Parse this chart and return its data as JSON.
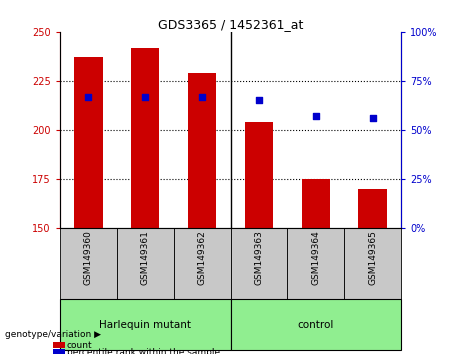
{
  "title": "GDS3365 / 1452361_at",
  "samples": [
    "GSM149360",
    "GSM149361",
    "GSM149362",
    "GSM149363",
    "GSM149364",
    "GSM149365"
  ],
  "count_values": [
    237,
    242,
    229,
    204,
    175,
    170
  ],
  "percentile_values": [
    67,
    67,
    67,
    65,
    57,
    56
  ],
  "ylim_left": [
    150,
    250
  ],
  "ylim_right": [
    0,
    100
  ],
  "yticks_left": [
    150,
    175,
    200,
    225,
    250
  ],
  "yticks_right": [
    0,
    25,
    50,
    75,
    100
  ],
  "bar_color": "#cc0000",
  "dot_color": "#0000cc",
  "group1_label": "Harlequin mutant",
  "group2_label": "control",
  "group_color": "#90ee90",
  "tick_bg_color": "#c8c8c8",
  "bar_width": 0.5,
  "legend_count_label": "count",
  "legend_pct_label": "percentile rank within the sample",
  "genotype_label": "genotype/variation"
}
